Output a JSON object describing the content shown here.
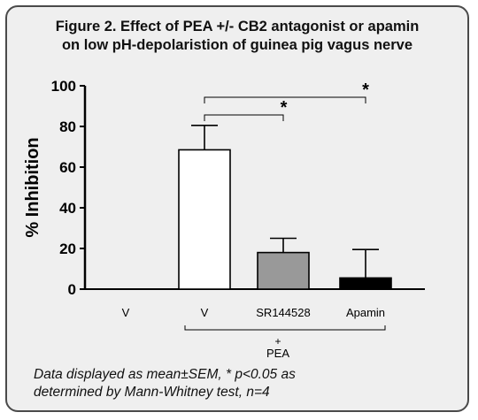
{
  "title_lines": [
    "Figure 2. Effect of PEA +/- CB2 antagonist or apamin",
    "on low pH-depolaristion of guinea pig vagus nerve"
  ],
  "caption_lines": [
    "Data displayed as mean±SEM, * p<0.05 as",
    "determined by Mann-Whitney test, n=4"
  ],
  "chart_data": {
    "type": "bar",
    "ylabel": "% Inhibition",
    "ylim": [
      0,
      100
    ],
    "yticks": [
      0,
      20,
      40,
      60,
      80,
      100
    ],
    "categories": [
      "V",
      "V",
      "SR144528",
      "Apamin"
    ],
    "values": [
      0,
      68.5,
      18,
      5.5
    ],
    "errors": [
      0,
      12,
      7,
      14
    ],
    "bar_colors": [
      "#ffffff",
      "#ffffff",
      "#999999",
      "#000000"
    ],
    "group_label": {
      "lines": [
        "+",
        "PEA"
      ],
      "spans_categories": [
        1,
        3
      ]
    },
    "significance": [
      {
        "from": 1,
        "to": 2,
        "label": "*"
      },
      {
        "from": 1,
        "to": 3,
        "label": "*"
      }
    ]
  }
}
